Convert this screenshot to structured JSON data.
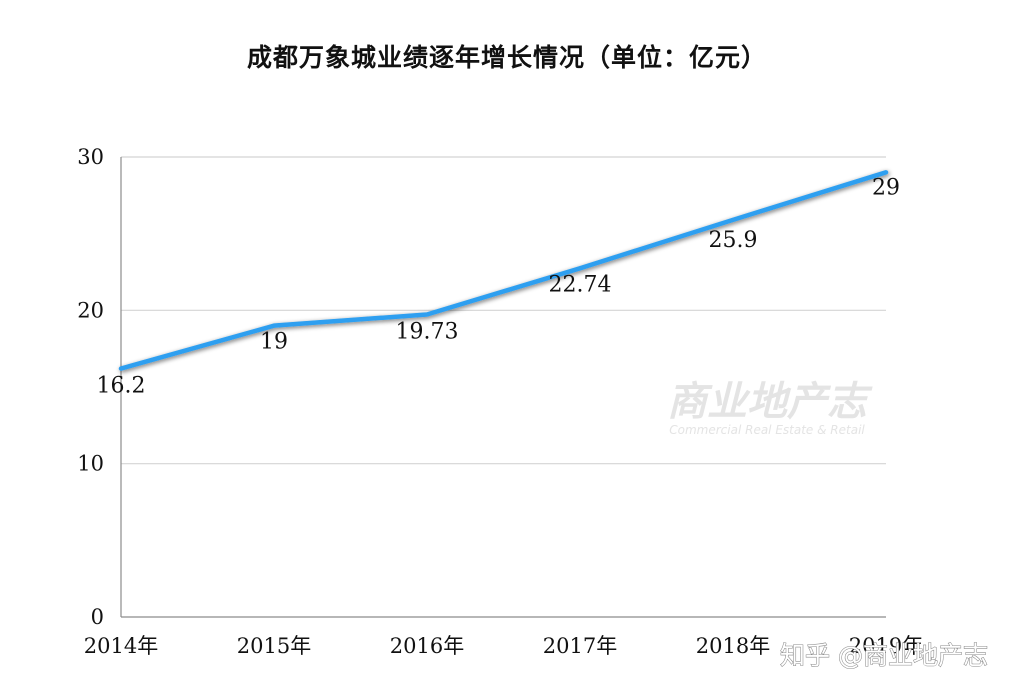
{
  "chart_data": {
    "type": "line",
    "title": "成都万象城业绩逐年增长情况（单位：亿元）",
    "categories": [
      "2014年",
      "2015年",
      "2016年",
      "2017年",
      "2018年",
      "2019年"
    ],
    "series": [
      {
        "values": [
          16.2,
          19,
          19.73,
          22.74,
          25.9,
          29
        ],
        "color": "#2e9ff0"
      }
    ],
    "data_labels": [
      "16.2",
      "19",
      "19.73",
      "22.74",
      "25.9",
      "29"
    ],
    "ylim": [
      0,
      30
    ],
    "yticks": [
      0,
      10,
      20,
      30
    ],
    "ytick_labels": [
      "0",
      "10",
      "20",
      "30"
    ],
    "grid": true,
    "legend": "none"
  },
  "watermark": {
    "main": "商业地产志",
    "sub": "Commercial  Real Estate & Retail"
  },
  "credit": "知乎 @商业地产志",
  "colors": {
    "line": "#2e9ff0",
    "grid": "#d4d4d4",
    "axis": "#8c8c8c"
  }
}
